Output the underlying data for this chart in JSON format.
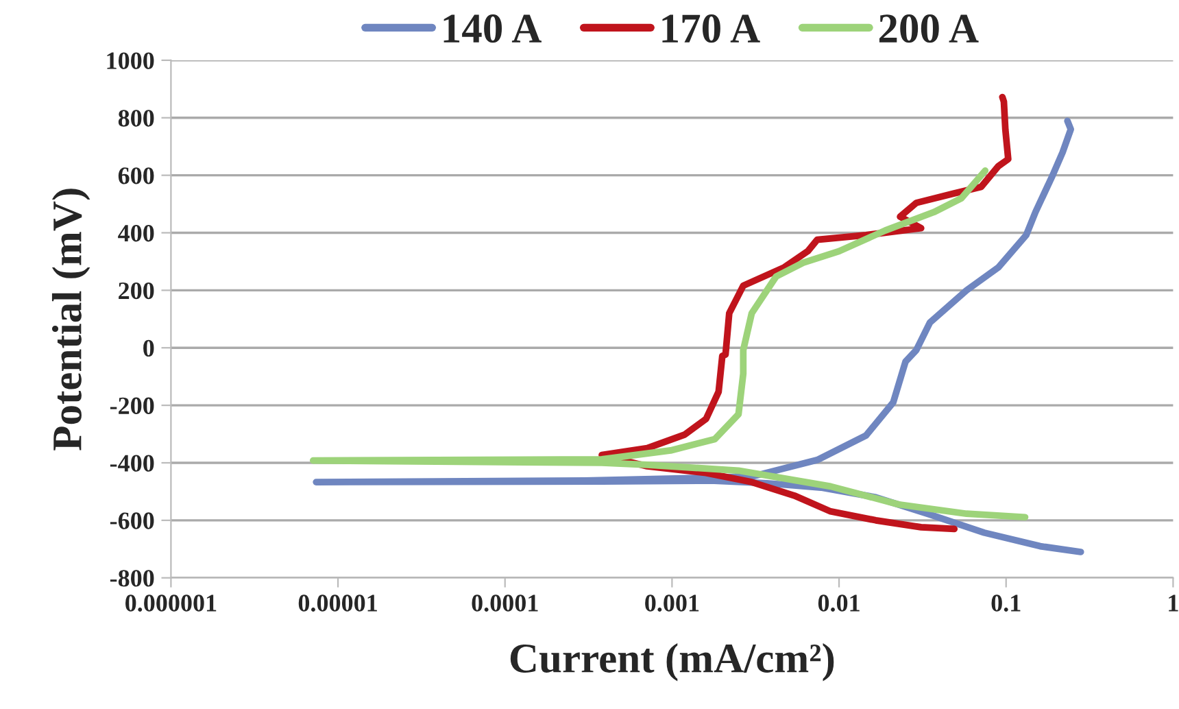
{
  "chart_data": {
    "type": "line",
    "xlabel": "Current (mA/cm²)",
    "ylabel": "Potential (mV)",
    "log": "x",
    "grid": "y",
    "legend": "top",
    "line_style": "solid",
    "marker": "none",
    "xlim": [
      1e-06,
      1
    ],
    "xticks": [
      {
        "value": 1e-06,
        "label": "0.000001"
      },
      {
        "value": 1e-05,
        "label": "0.00001"
      },
      {
        "value": 0.0001,
        "label": "0.0001"
      },
      {
        "value": 0.001,
        "label": "0.001"
      },
      {
        "value": 0.01,
        "label": "0.01"
      },
      {
        "value": 0.1,
        "label": "0.1"
      },
      {
        "value": 1,
        "label": "1"
      }
    ],
    "ylim": [
      -800,
      1000
    ],
    "yticks": [
      -800,
      -600,
      -400,
      -200,
      0,
      200,
      400,
      600,
      800,
      1000
    ],
    "series": [
      {
        "name": "140 A",
        "color": "#6f86c0",
        "x": [
          0.28,
          0.16,
          0.074,
          0.035,
          0.0166,
          0.0078,
          0.0037,
          0.0017,
          0.00038,
          7.4e-06,
          0.0003,
          0.003,
          0.0074,
          0.0145,
          0.0211,
          0.025,
          0.029,
          0.035,
          0.058,
          0.09,
          0.132,
          0.15,
          0.19,
          0.218,
          0.244,
          0.233
        ],
        "values": [
          -710,
          -690,
          -643,
          -580,
          -520,
          -486,
          -471,
          -462,
          -465,
          -467,
          -462,
          -448,
          -390,
          -305,
          -190,
          -48,
          -8,
          88,
          200,
          280,
          392,
          472,
          600,
          680,
          760,
          789
        ]
      },
      {
        "name": "170 A",
        "color": "#c0141c",
        "x": [
          0.049,
          0.031,
          0.0166,
          0.0089,
          0.0054,
          0.003,
          0.0016,
          0.00071,
          0.00038,
          0.00071,
          0.00119,
          0.0016,
          0.0019,
          0.002,
          0.00209,
          0.0022,
          0.00267,
          0.0047,
          0.0065,
          0.0074,
          0.0145,
          0.031,
          0.0232,
          0.029,
          0.048,
          0.071,
          0.09,
          0.103,
          0.099,
          0.097,
          0.095
        ],
        "values": [
          -630,
          -624,
          -600,
          -569,
          -514,
          -467,
          -435,
          -412,
          -373,
          -349,
          -302,
          -247,
          -153,
          -28,
          -24,
          120,
          216,
          280,
          336,
          376,
          392,
          416,
          456,
          504,
          536,
          560,
          632,
          656,
          760,
          856,
          872
        ]
      },
      {
        "name": "200 A",
        "color": "#9dd37a",
        "x": [
          0.13,
          0.058,
          0.0228,
          0.0089,
          0.0025,
          0.00071,
          0.00038,
          7.1e-06,
          0.00038,
          0.00098,
          0.0018,
          0.0025,
          0.00267,
          0.00267,
          0.003,
          0.0042,
          0.0061,
          0.01,
          0.0189,
          0.037,
          0.054,
          0.075
        ],
        "values": [
          -589,
          -577,
          -545,
          -482,
          -427,
          -407,
          -400,
          -392,
          -388,
          -357,
          -318,
          -231,
          -90,
          -8,
          120,
          248,
          296,
          336,
          408,
          472,
          520,
          616
        ]
      }
    ]
  }
}
